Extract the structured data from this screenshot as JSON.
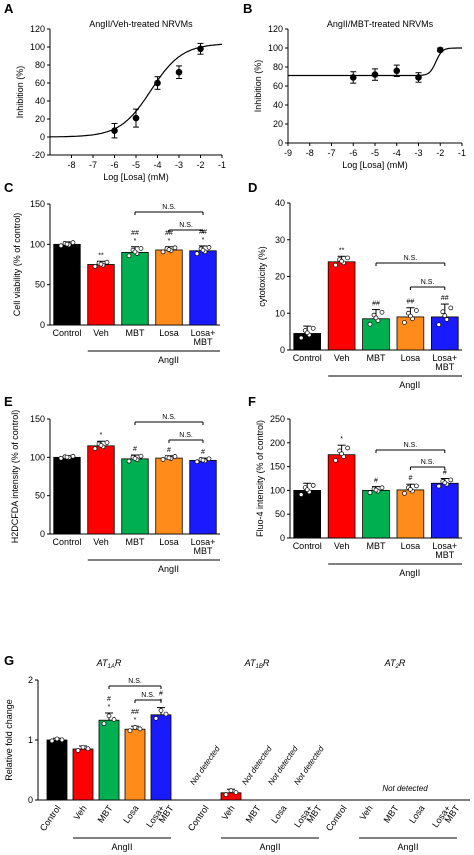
{
  "chart_data": [
    {
      "panel": "A",
      "type": "scatter",
      "title": "AngII/Veh-treated NRVMs",
      "xlabel": "Log [Losa] (mM)",
      "ylabel": "Inhibition (%)",
      "xlim": [
        -9,
        -1
      ],
      "ylim": [
        -20,
        120
      ],
      "xticks": [
        "-8",
        "-7",
        "-6",
        "-5",
        "-4",
        "-3",
        "-2",
        "-1"
      ],
      "yticks": [
        "-20",
        "0",
        "20",
        "40",
        "60",
        "80",
        "100",
        "120"
      ],
      "points": [
        {
          "x": -6,
          "y": 7,
          "err": 8
        },
        {
          "x": -5,
          "y": 21,
          "err": 10
        },
        {
          "x": -4,
          "y": 60,
          "err": 7
        },
        {
          "x": -3,
          "y": 72,
          "err": 7
        },
        {
          "x": -2,
          "y": 98,
          "err": 6
        }
      ],
      "fit": {
        "bottom": 0,
        "top": 104,
        "logIC50": -4.3,
        "hill": 0.6
      }
    },
    {
      "panel": "B",
      "type": "scatter",
      "title": "AngII/MBT-treated  NRVMs",
      "xlabel": "Log [Losa] (mM)",
      "ylabel": "Inhibition (%)",
      "xlim": [
        -9,
        -1
      ],
      "ylim": [
        0,
        120
      ],
      "xticks": [
        "-9",
        "-8",
        "-7",
        "-6",
        "-5",
        "-4",
        "-3",
        "-2",
        "-1"
      ],
      "yticks": [
        "0",
        "20",
        "40",
        "60",
        "80",
        "100",
        "120"
      ],
      "points": [
        {
          "x": -6,
          "y": 69,
          "err": 6
        },
        {
          "x": -5,
          "y": 72,
          "err": 6
        },
        {
          "x": -4,
          "y": 76,
          "err": 6
        },
        {
          "x": -3,
          "y": 69,
          "err": 5
        },
        {
          "x": -2,
          "y": 98,
          "err": 2
        }
      ],
      "fit": {
        "bottom": 71,
        "top": 100,
        "logIC50": -2.2,
        "hill": 3
      }
    },
    {
      "panel": "C",
      "type": "bar",
      "ylabel": "Cell viability (% of control)",
      "ylim": [
        0,
        150
      ],
      "yticks": [
        "0",
        "50",
        "100",
        "150"
      ],
      "categories": [
        "Control",
        "Veh",
        "MBT",
        "Losa",
        "Losa+\nMBT"
      ],
      "values": [
        100,
        75,
        90,
        93,
        92
      ],
      "errors": [
        3,
        4,
        7,
        4,
        6
      ],
      "colors": [
        "#000000",
        "#ff0000",
        "#00b050",
        "#ff8c1a",
        "#1a1aff"
      ],
      "annotations": [
        "",
        "**",
        "##\n*",
        "##\n*",
        "##\n*"
      ],
      "group_label": "AngII",
      "ns_label": "N.S."
    },
    {
      "panel": "D",
      "type": "bar",
      "ylabel": "cytotoxicity  (%)",
      "ylim": [
        0,
        40
      ],
      "yticks": [
        "0",
        "10",
        "20",
        "30",
        "40"
      ],
      "categories": [
        "Control",
        "Veh",
        "MBT",
        "Losa",
        "Losa+\nMBT"
      ],
      "values": [
        4.5,
        24,
        8.5,
        9,
        9
      ],
      "errors": [
        2,
        1.5,
        2.5,
        2.5,
        3.5
      ],
      "colors": [
        "#000000",
        "#ff0000",
        "#00b050",
        "#ff8c1a",
        "#1a1aff"
      ],
      "annotations": [
        "",
        "**",
        "##",
        "##",
        "##"
      ],
      "group_label": "AngII",
      "ns_label": "N.S."
    },
    {
      "panel": "E",
      "type": "bar",
      "ylabel": "H2DCFDA intensity (% of control)",
      "ylim": [
        0,
        150
      ],
      "yticks": [
        "0",
        "50",
        "100",
        "150"
      ],
      "categories": [
        "Control",
        "Veh",
        "MBT",
        "Losa",
        "Losa+\nMBT"
      ],
      "values": [
        100,
        115,
        98,
        99,
        96
      ],
      "errors": [
        2,
        6,
        5,
        3,
        3
      ],
      "colors": [
        "#000000",
        "#ff0000",
        "#00b050",
        "#ff8c1a",
        "#1a1aff"
      ],
      "annotations": [
        "",
        "*",
        "#",
        "#",
        "#"
      ],
      "group_label": "AngII",
      "ns_label": "N.S."
    },
    {
      "panel": "F",
      "type": "bar",
      "ylabel": "Fluo-4 intensity (% of control)",
      "ylim": [
        0,
        250
      ],
      "yticks": [
        "0",
        "50",
        "100",
        "150",
        "200",
        "250"
      ],
      "categories": [
        "Control",
        "Veh",
        "MBT",
        "Losa",
        "Losa+\nMBT"
      ],
      "values": [
        100,
        175,
        100,
        101,
        115
      ],
      "errors": [
        15,
        20,
        8,
        12,
        10
      ],
      "colors": [
        "#000000",
        "#ff0000",
        "#00b050",
        "#ff8c1a",
        "#1a1aff"
      ],
      "annotations": [
        "",
        "*",
        "#",
        "#",
        "#"
      ],
      "group_label": "AngII",
      "ns_label": "N.S."
    },
    {
      "panel": "G",
      "type": "bar",
      "ylabel": "Relative fold change",
      "ylim": [
        0,
        2
      ],
      "yticks": [
        "0",
        "1",
        "2"
      ],
      "groups": [
        {
          "name": "AT1AR",
          "categories": [
            "Control",
            "Veh",
            "MBT",
            "Losa",
            "Losa+\nMBT"
          ],
          "values": [
            1.0,
            0.85,
            1.33,
            1.18,
            1.42
          ],
          "errors": [
            0.03,
            0.05,
            0.12,
            0.05,
            0.12
          ],
          "annotations": [
            "",
            "",
            "#\n*",
            "##\n*",
            "#\n*"
          ]
        },
        {
          "name": "AT1BR",
          "categories": [
            "Control",
            "Veh",
            "MBT",
            "Losa",
            "Losa+\nMBT"
          ],
          "values": [
            null,
            0.12,
            null,
            null,
            null
          ],
          "errors": [
            0,
            0.06,
            0,
            0,
            0
          ],
          "annotations": [
            "Not detected",
            "",
            "Not detected",
            "Not detected",
            "Not detected"
          ]
        },
        {
          "name": "AT2R",
          "categories": [
            "Control",
            "Veh",
            "MBT",
            "Losa",
            "Losa+\nMBT"
          ],
          "values": [
            null,
            null,
            null,
            null,
            null
          ],
          "note": "Not detected"
        }
      ],
      "colors": [
        "#000000",
        "#ff0000",
        "#00b050",
        "#ff8c1a",
        "#1a1aff"
      ],
      "group_label": "AngII",
      "ns_label": "N.S."
    }
  ],
  "panel_labels": [
    "A",
    "B",
    "C",
    "D",
    "E",
    "F",
    "G"
  ]
}
